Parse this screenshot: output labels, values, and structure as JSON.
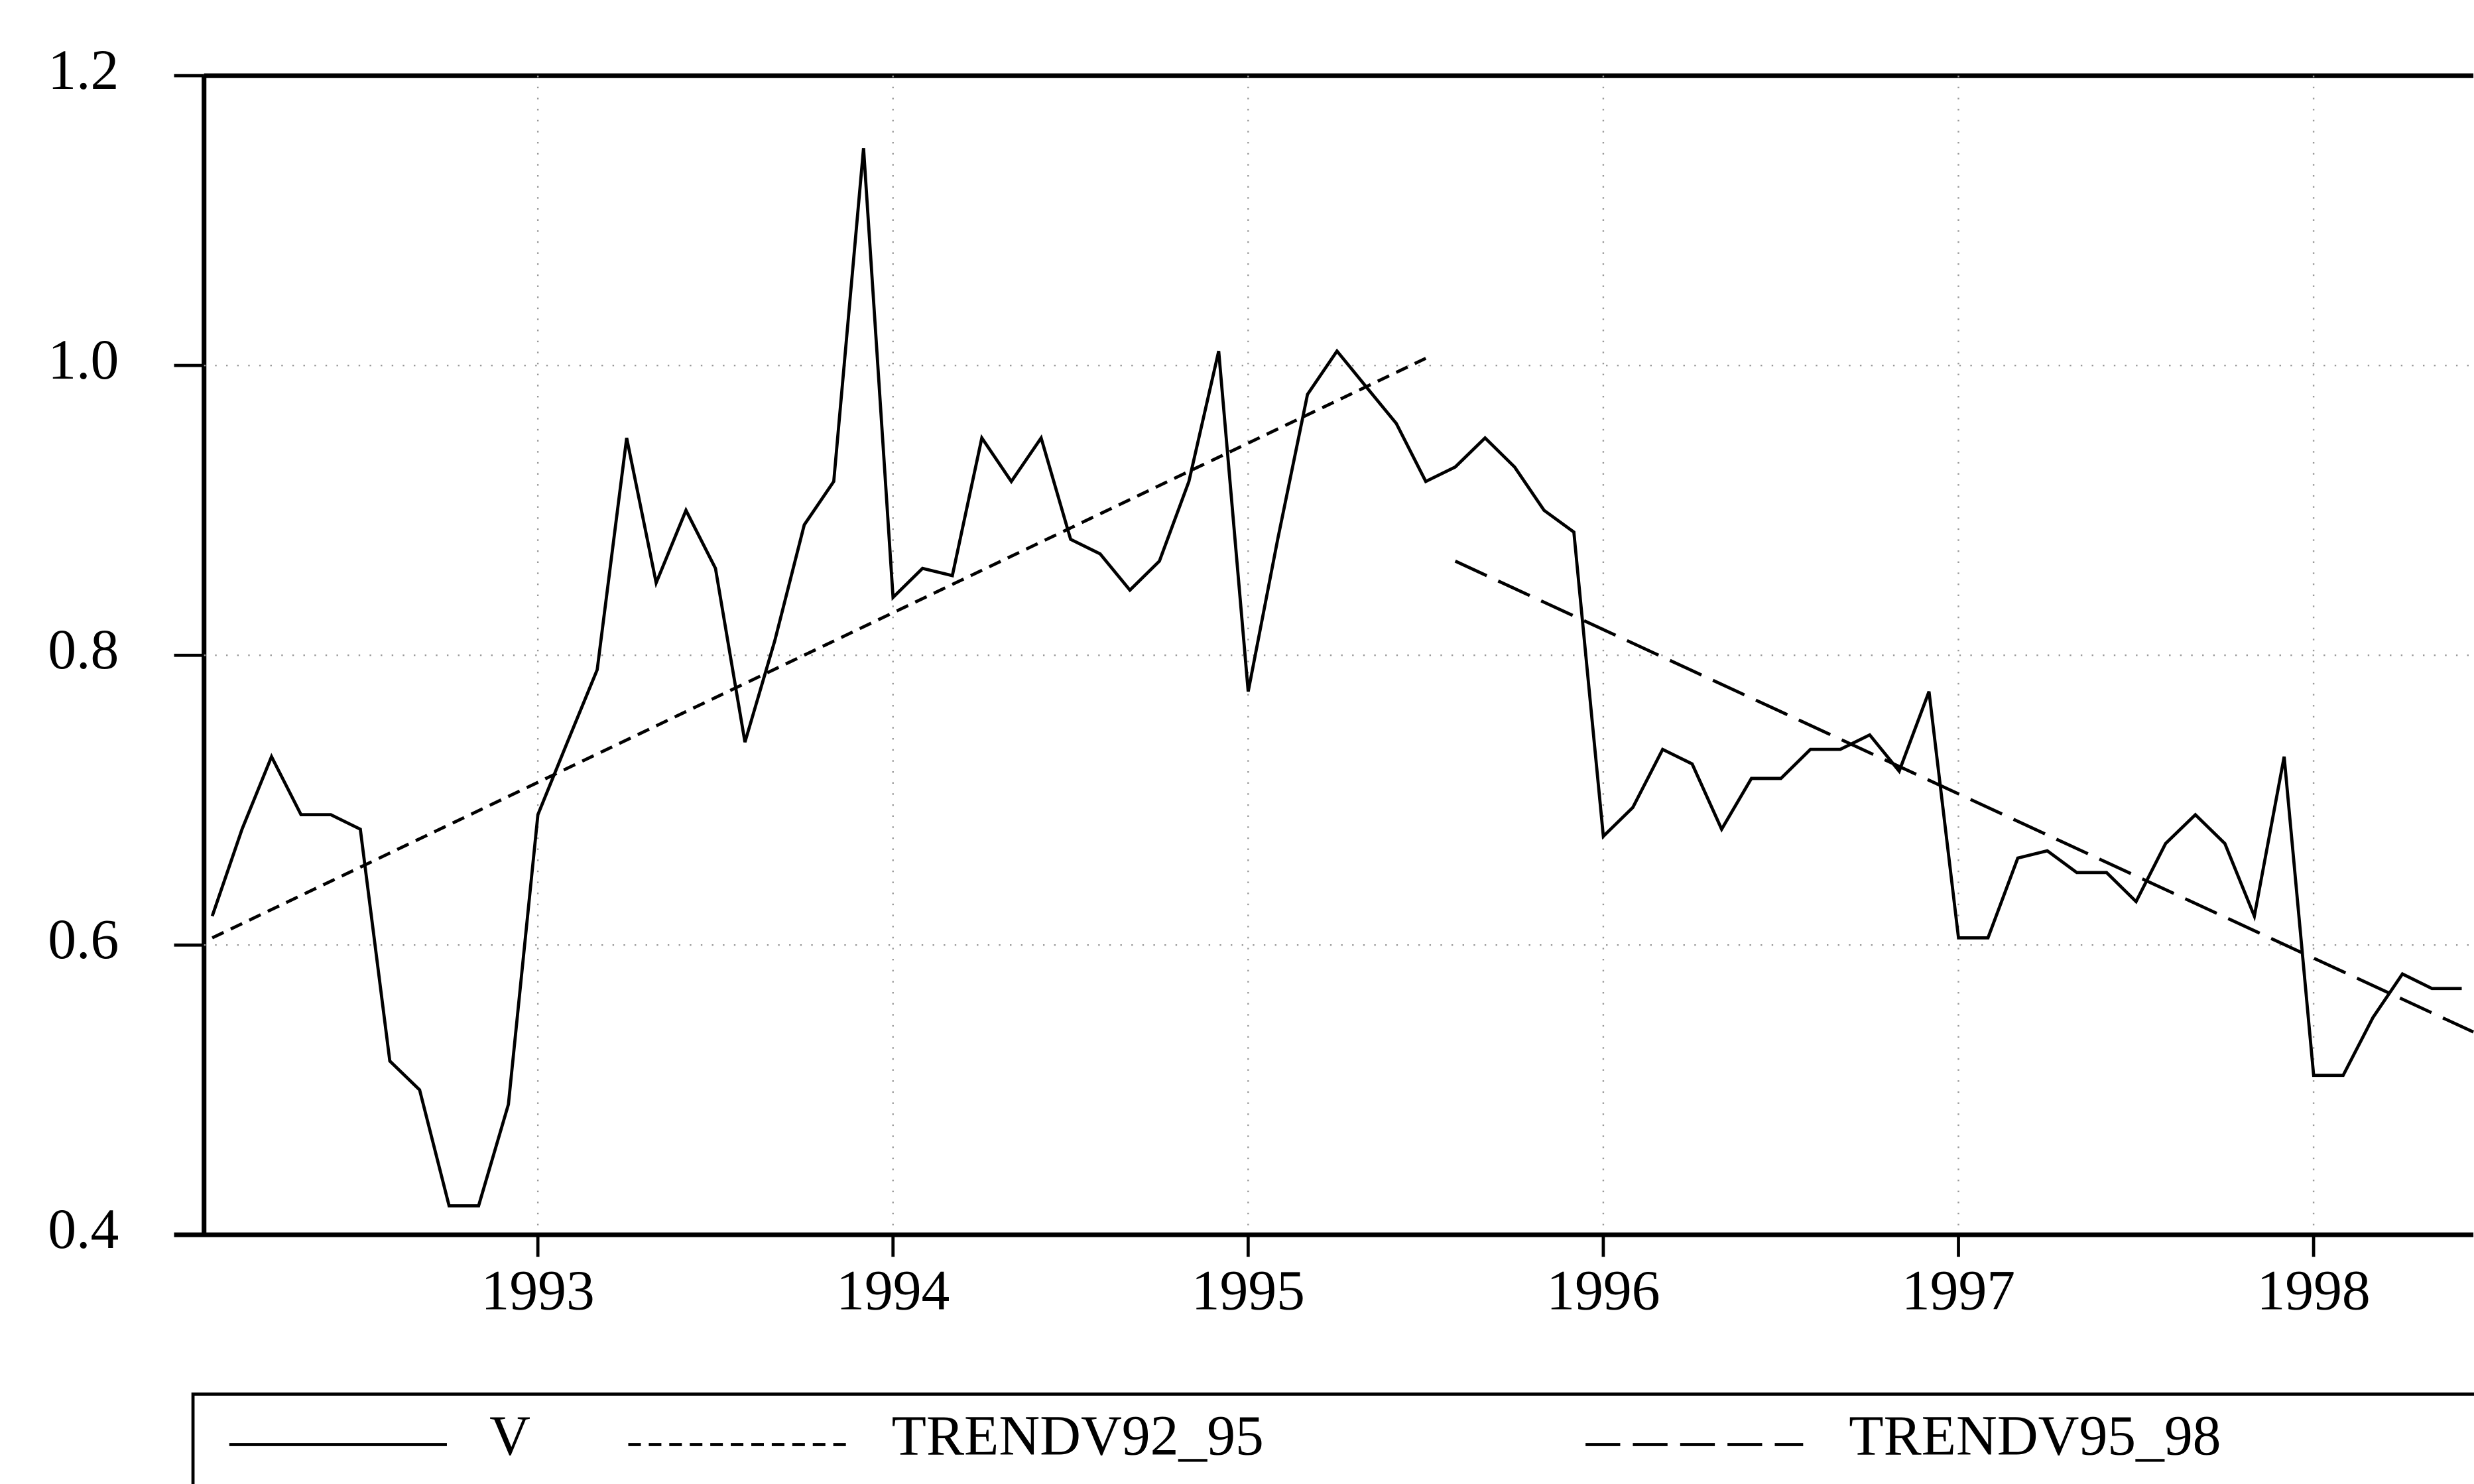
{
  "chart_data": {
    "type": "line",
    "series": [
      {
        "name": "V",
        "color": "#000000",
        "style": "solid",
        "x": [
          1992.083,
          1992.167,
          1992.25,
          1992.333,
          1992.417,
          1992.5,
          1992.583,
          1992.667,
          1992.75,
          1992.833,
          1992.917,
          1993.0,
          1993.083,
          1993.167,
          1993.25,
          1993.333,
          1993.417,
          1993.5,
          1993.583,
          1993.667,
          1993.75,
          1993.833,
          1993.917,
          1994.0,
          1994.083,
          1994.167,
          1994.25,
          1994.333,
          1994.417,
          1994.5,
          1994.583,
          1994.667,
          1994.75,
          1994.833,
          1994.917,
          1995.0,
          1995.083,
          1995.167,
          1995.25,
          1995.333,
          1995.417,
          1995.5,
          1995.583,
          1995.667,
          1995.75,
          1995.833,
          1995.917,
          1996.0,
          1996.083,
          1996.167,
          1996.25,
          1996.333,
          1996.417,
          1996.5,
          1996.583,
          1996.667,
          1996.75,
          1996.833,
          1996.917,
          1997.0,
          1997.083,
          1997.167,
          1997.25,
          1997.333,
          1997.417,
          1997.5,
          1997.583,
          1997.667,
          1997.75,
          1997.833,
          1997.917,
          1998.0,
          1998.083,
          1998.167,
          1998.25,
          1998.333,
          1998.417
        ],
        "values": [
          0.62,
          0.68,
          0.73,
          0.69,
          0.69,
          0.68,
          0.52,
          0.5,
          0.42,
          0.42,
          0.49,
          0.69,
          0.74,
          0.79,
          0.95,
          0.85,
          0.9,
          0.86,
          0.74,
          0.81,
          0.89,
          0.92,
          1.15,
          0.84,
          0.86,
          0.855,
          0.95,
          0.92,
          0.95,
          0.88,
          0.87,
          0.845,
          0.865,
          0.92,
          1.01,
          0.775,
          0.88,
          0.98,
          1.01,
          0.985,
          0.96,
          0.92,
          0.93,
          0.95,
          0.93,
          0.9,
          0.885,
          0.675,
          0.695,
          0.735,
          0.725,
          0.68,
          0.715,
          0.715,
          0.735,
          0.735,
          0.745,
          0.72,
          0.775,
          0.605,
          0.605,
          0.66,
          0.665,
          0.65,
          0.65,
          0.63,
          0.67,
          0.69,
          0.67,
          0.62,
          0.73,
          0.51,
          0.51,
          0.55,
          0.58,
          0.57,
          0.57
        ]
      },
      {
        "name": "TRENDV92_95",
        "color": "#000000",
        "style": "dashed",
        "x": [
          1992.083,
          1995.5
        ],
        "values": [
          0.605,
          1.005
        ]
      },
      {
        "name": "TRENDV95_98",
        "color": "#000000",
        "style": "longdash",
        "x": [
          1995.583,
          1998.45
        ],
        "values": [
          0.865,
          0.54
        ]
      }
    ],
    "xlim": [
      1992.06,
      1998.45
    ],
    "xticks": [
      1993,
      1994,
      1995,
      1996,
      1997,
      1998
    ],
    "ylim": [
      0.4,
      1.2
    ],
    "yticks": [
      0.4,
      0.6,
      0.8,
      {
        "value": 1.0,
        "label": "1.0"
      },
      1.2
    ],
    "grid": true,
    "legend": "bottom"
  }
}
